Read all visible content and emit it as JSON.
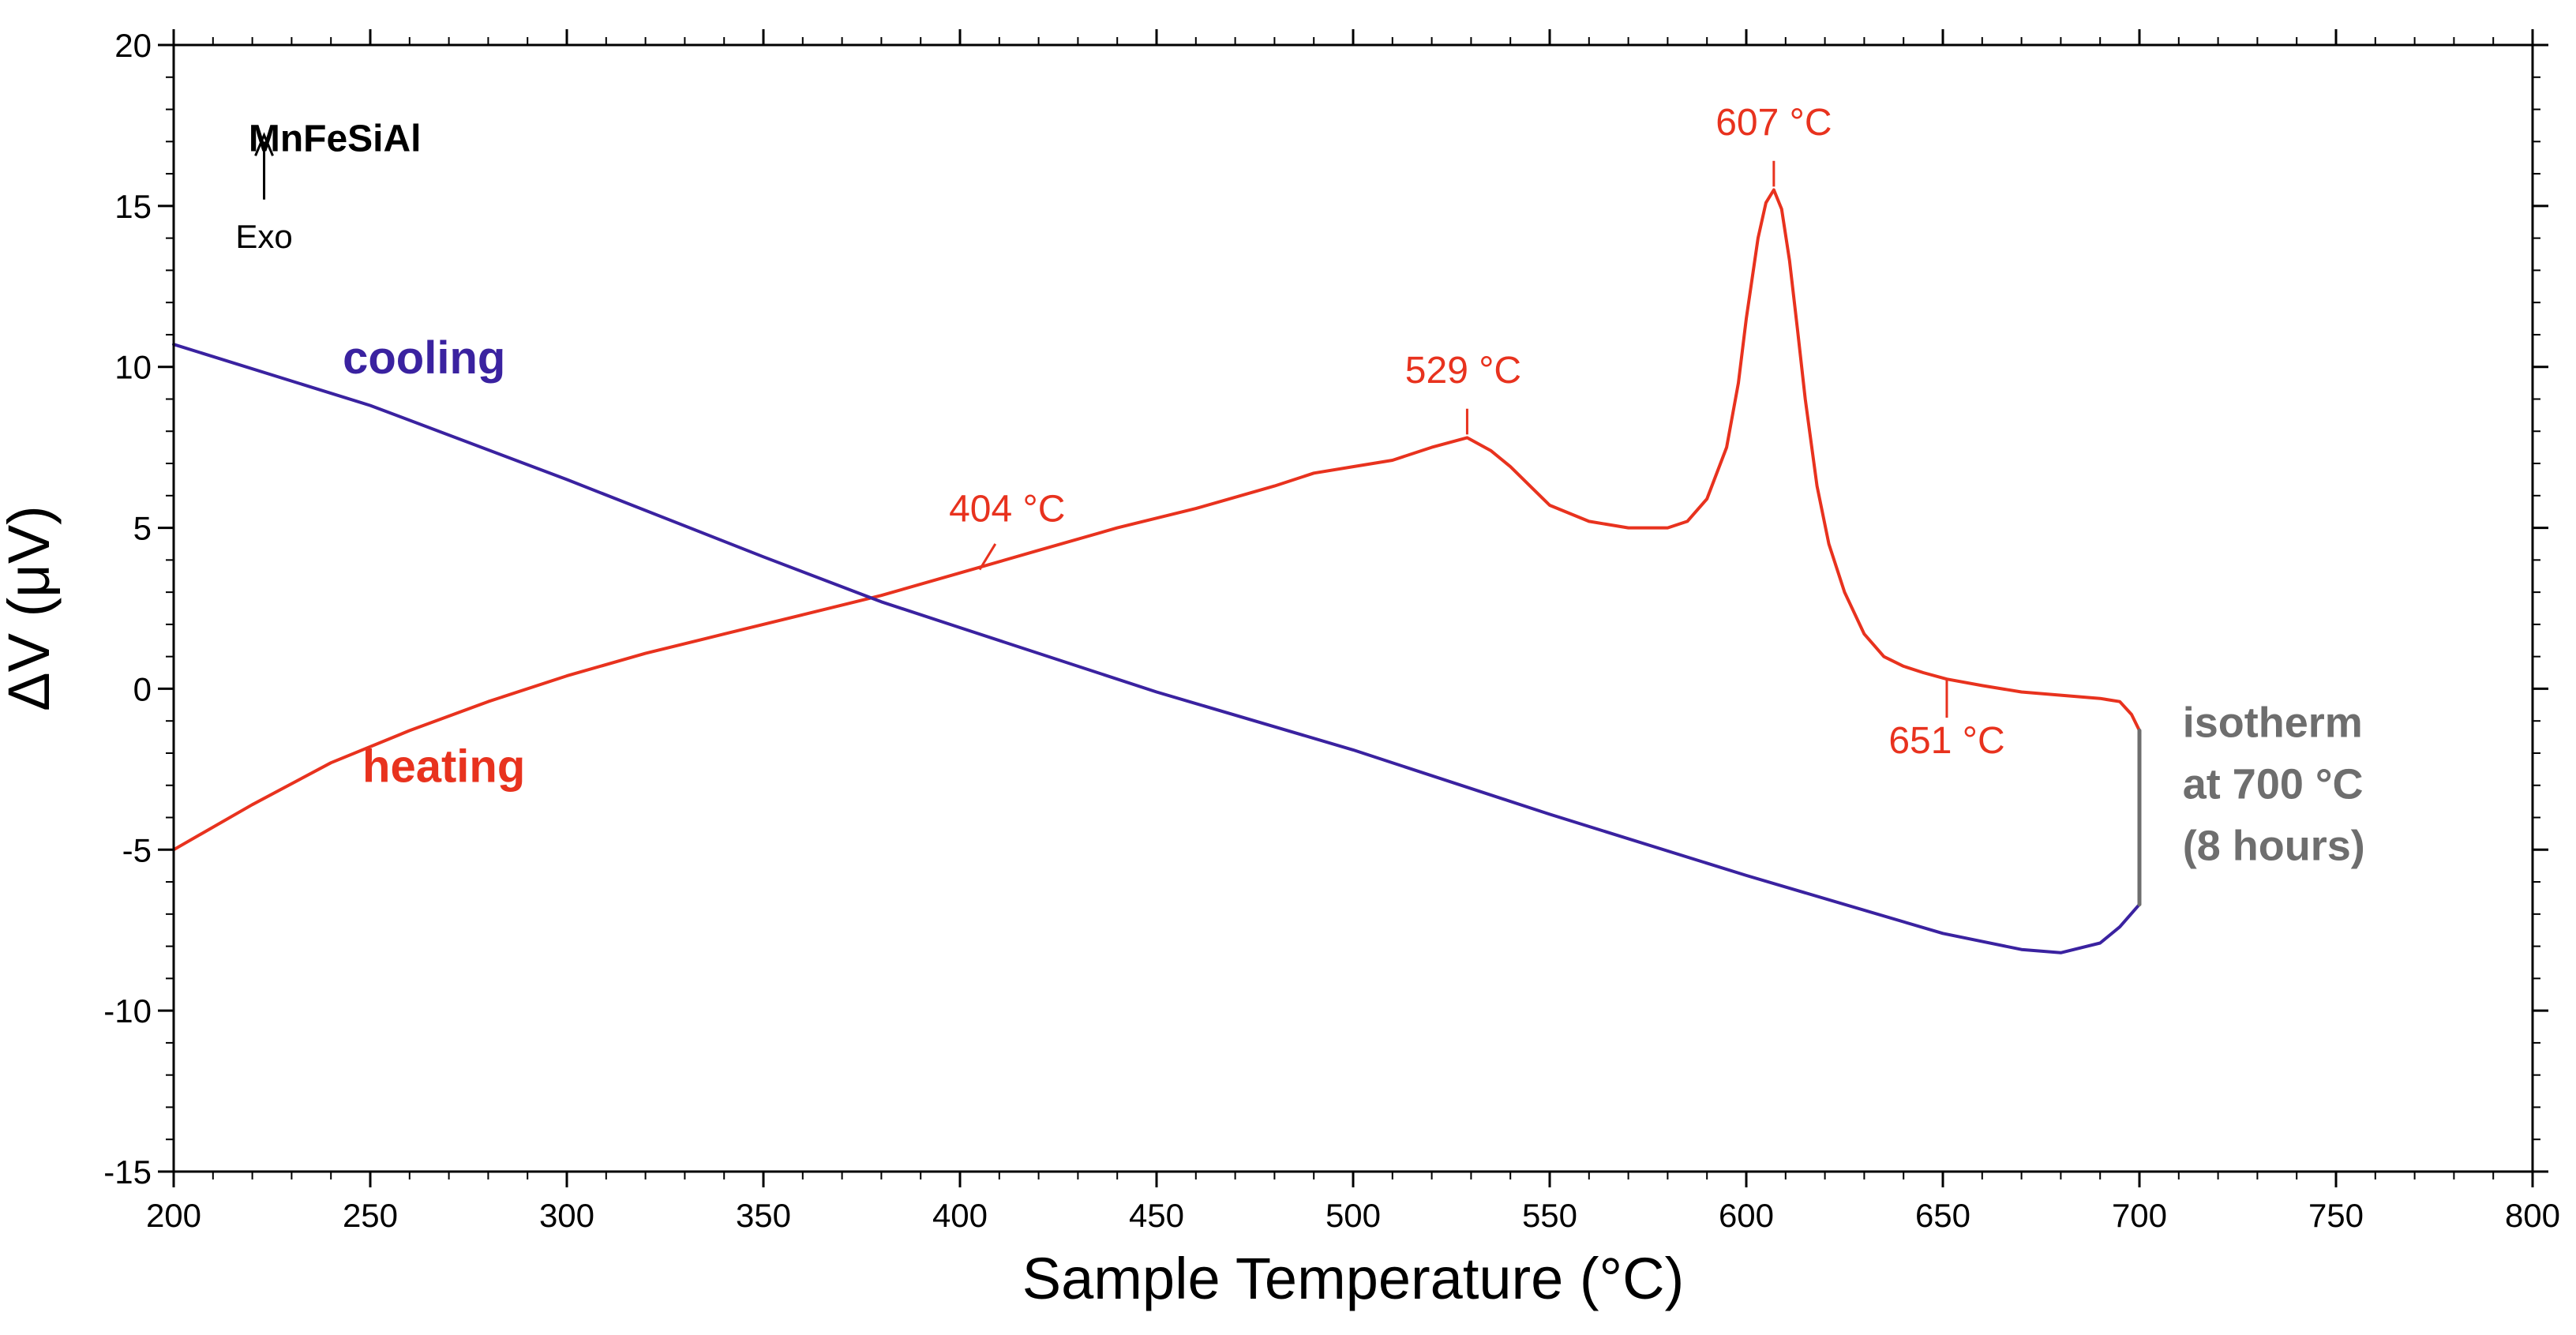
{
  "chart_data": {
    "type": "line",
    "title": "MnFeSiAl",
    "xlabel": "Sample Temperature (°C)",
    "ylabel": "ΔV (μV)",
    "xlim": [
      200,
      800
    ],
    "ylim": [
      -15,
      20
    ],
    "x_ticks": [
      200,
      250,
      300,
      350,
      400,
      450,
      500,
      550,
      600,
      650,
      700,
      750,
      800
    ],
    "y_ticks": [
      -15,
      -10,
      -5,
      0,
      5,
      10,
      15,
      20
    ],
    "x_tick_labels": [
      "200",
      "250",
      "300",
      "350",
      "400",
      "450",
      "500",
      "550",
      "600",
      "650",
      "700",
      "750",
      "800"
    ],
    "y_tick_labels": [
      "-15",
      "-10",
      "-5",
      "0",
      "5",
      "10",
      "15",
      "20"
    ],
    "grid": false,
    "exo_label": "Exo",
    "colors": {
      "heating": "#e8321e",
      "cooling": "#3a22a0",
      "isotherm": "#6e6e6e"
    },
    "series": [
      {
        "name": "heating",
        "label": "heating",
        "x": [
          200,
          220,
          240,
          260,
          280,
          300,
          320,
          340,
          360,
          380,
          400,
          420,
          440,
          460,
          480,
          490,
          500,
          510,
          520,
          529,
          535,
          540,
          545,
          550,
          560,
          570,
          580,
          585,
          590,
          595,
          598,
          600,
          603,
          605,
          607,
          609,
          611,
          613,
          615,
          618,
          621,
          625,
          630,
          635,
          640,
          645,
          651,
          660,
          670,
          680,
          690,
          695,
          698,
          700
        ],
        "y": [
          -5.0,
          -3.6,
          -2.3,
          -1.3,
          -0.4,
          0.4,
          1.1,
          1.7,
          2.3,
          2.9,
          3.6,
          4.3,
          5.0,
          5.6,
          6.3,
          6.7,
          6.9,
          7.1,
          7.5,
          7.8,
          7.4,
          6.9,
          6.3,
          5.7,
          5.2,
          5.0,
          5.0,
          5.2,
          5.9,
          7.5,
          9.5,
          11.5,
          14.0,
          15.1,
          15.5,
          14.9,
          13.3,
          11.2,
          9.0,
          6.3,
          4.5,
          3.0,
          1.7,
          1.0,
          0.7,
          0.5,
          0.3,
          0.1,
          -0.1,
          -0.2,
          -0.3,
          -0.4,
          -0.8,
          -1.3
        ]
      },
      {
        "name": "cooling",
        "label": "cooling",
        "x": [
          200,
          250,
          300,
          350,
          380,
          400,
          450,
          500,
          550,
          600,
          650,
          670,
          680,
          690,
          695,
          700
        ],
        "y": [
          10.7,
          8.8,
          6.5,
          4.1,
          2.7,
          1.9,
          -0.1,
          -1.9,
          -3.9,
          -5.8,
          -7.6,
          -8.1,
          -8.2,
          -7.9,
          -7.4,
          -6.7
        ]
      },
      {
        "name": "isotherm",
        "label": "isotherm at 700 °C (8 hours)",
        "x": [
          700,
          700
        ],
        "y": [
          -1.3,
          -6.7
        ]
      }
    ],
    "annotations": [
      {
        "text": "404 °C",
        "x": 404,
        "y": 3.6
      },
      {
        "text": "529 °C",
        "x": 529,
        "y": 7.8
      },
      {
        "text": "607 °C",
        "x": 607,
        "y": 15.5
      },
      {
        "text": "651 °C",
        "x": 651,
        "y": 0.3
      }
    ],
    "isotherm_label_lines": [
      "isotherm",
      "at 700 °C",
      "(8 hours)"
    ]
  }
}
